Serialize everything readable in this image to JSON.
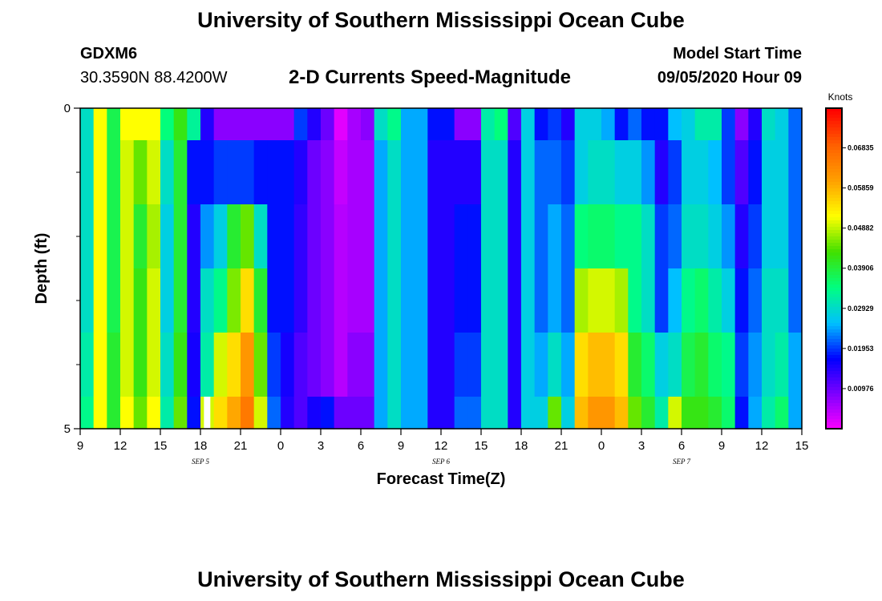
{
  "header": {
    "title": "University of Southern Mississippi Ocean Cube",
    "station_id": "GDXM6",
    "station_coords": "30.3590N 88.4200W",
    "subtitle": "2-D Currents Speed-Magnitude",
    "model_start_label": "Model Start Time",
    "model_start_value": "09/05/2020 Hour 09"
  },
  "footer": {
    "title": "University of Southern Mississippi Ocean Cube"
  },
  "chart_data": {
    "type": "heatmap",
    "xlabel": "Forecast Time(Z)",
    "ylabel": "Depth (ft)",
    "x_tick_labels": [
      "9",
      "12",
      "15",
      "18",
      "21",
      "0",
      "3",
      "6",
      "9",
      "12",
      "15",
      "18",
      "21",
      "0",
      "3",
      "6",
      "9",
      "12",
      "15"
    ],
    "date_labels": [
      {
        "label": "SEP 5",
        "tick_index": 3
      },
      {
        "label": "SEP 6",
        "tick_index": 9
      },
      {
        "label": "SEP 7",
        "tick_index": 15
      }
    ],
    "y_range": [
      0,
      5
    ],
    "y_tick_labels": [
      "0",
      "5"
    ],
    "y_minor_ticks": [
      1,
      2,
      3,
      4
    ],
    "hours": 54,
    "depth_bands": [
      0,
      0.5,
      1.5,
      2.5,
      3.5,
      4.5,
      5
    ],
    "colorbar": {
      "unit": "Knots",
      "min": 0,
      "max": 0.078,
      "tick_labels": [
        "0.00976",
        "0.01953",
        "0.02929",
        "0.03906",
        "0.04882",
        "0.05859",
        "0.06835"
      ],
      "tick_values": [
        0.00976,
        0.01953,
        0.02929,
        0.03906,
        0.04882,
        0.05859,
        0.06835
      ],
      "colors": [
        "#ff00ff",
        "#8000ff",
        "#0000ff",
        "#00c0ff",
        "#00ff80",
        "#40e000",
        "#ffff00",
        "#ffa000",
        "#ff6000",
        "#ff0000"
      ]
    },
    "max_marker": {
      "hour": 9.5,
      "depth": 4.75,
      "color": "#ffffff"
    },
    "values": [
      [
        0.03,
        0.052,
        0.038,
        0.052,
        0.052,
        0.052,
        0.035,
        0.042,
        0.033,
        0.015,
        0.008,
        0.008,
        0.008,
        0.008,
        0.008,
        0.008,
        0.02,
        0.015,
        0.01,
        0.002,
        0.006,
        0.008,
        0.03,
        0.034,
        0.025,
        0.025,
        0.018,
        0.018,
        0.008,
        0.008,
        0.032,
        0.035,
        0.012,
        0.028,
        0.018,
        0.02,
        0.015,
        0.028,
        0.028,
        0.025,
        0.018,
        0.022,
        0.018,
        0.018,
        0.026,
        0.028,
        0.032,
        0.032,
        0.02,
        0.008,
        0.015,
        0.03,
        0.028,
        0.022
      ],
      [
        0.03,
        0.052,
        0.038,
        0.05,
        0.045,
        0.05,
        0.03,
        0.04,
        0.018,
        0.018,
        0.02,
        0.02,
        0.02,
        0.018,
        0.018,
        0.018,
        0.015,
        0.01,
        0.008,
        0.004,
        0.006,
        0.006,
        0.025,
        0.03,
        0.025,
        0.025,
        0.015,
        0.015,
        0.015,
        0.015,
        0.03,
        0.03,
        0.015,
        0.028,
        0.022,
        0.022,
        0.02,
        0.028,
        0.03,
        0.03,
        0.028,
        0.028,
        0.024,
        0.015,
        0.02,
        0.028,
        0.028,
        0.026,
        0.02,
        0.012,
        0.018,
        0.028,
        0.028,
        0.022
      ],
      [
        0.03,
        0.052,
        0.038,
        0.05,
        0.04,
        0.048,
        0.028,
        0.04,
        0.015,
        0.024,
        0.028,
        0.04,
        0.045,
        0.03,
        0.018,
        0.018,
        0.014,
        0.01,
        0.008,
        0.005,
        0.006,
        0.006,
        0.025,
        0.03,
        0.025,
        0.025,
        0.015,
        0.015,
        0.018,
        0.018,
        0.03,
        0.03,
        0.015,
        0.028,
        0.022,
        0.025,
        0.022,
        0.035,
        0.036,
        0.036,
        0.034,
        0.034,
        0.03,
        0.02,
        0.022,
        0.03,
        0.03,
        0.028,
        0.024,
        0.015,
        0.02,
        0.028,
        0.028,
        0.022
      ],
      [
        0.03,
        0.052,
        0.038,
        0.05,
        0.042,
        0.05,
        0.028,
        0.04,
        0.015,
        0.03,
        0.034,
        0.046,
        0.055,
        0.04,
        0.018,
        0.018,
        0.014,
        0.01,
        0.008,
        0.005,
        0.006,
        0.006,
        0.025,
        0.03,
        0.025,
        0.025,
        0.015,
        0.015,
        0.018,
        0.018,
        0.03,
        0.03,
        0.015,
        0.028,
        0.022,
        0.025,
        0.022,
        0.048,
        0.05,
        0.05,
        0.048,
        0.034,
        0.03,
        0.02,
        0.026,
        0.034,
        0.036,
        0.032,
        0.028,
        0.018,
        0.022,
        0.03,
        0.03,
        0.022
      ],
      [
        0.032,
        0.052,
        0.04,
        0.05,
        0.042,
        0.05,
        0.03,
        0.042,
        0.016,
        0.032,
        0.05,
        0.055,
        0.062,
        0.045,
        0.02,
        0.016,
        0.012,
        0.01,
        0.008,
        0.005,
        0.008,
        0.008,
        0.025,
        0.03,
        0.025,
        0.025,
        0.015,
        0.015,
        0.02,
        0.02,
        0.03,
        0.03,
        0.015,
        0.028,
        0.025,
        0.03,
        0.025,
        0.055,
        0.058,
        0.058,
        0.055,
        0.04,
        0.036,
        0.028,
        0.03,
        0.038,
        0.04,
        0.036,
        0.034,
        0.02,
        0.024,
        0.03,
        0.032,
        0.025
      ],
      [
        0.034,
        0.052,
        0.04,
        0.052,
        0.045,
        0.052,
        0.032,
        0.045,
        0.018,
        0.05,
        0.055,
        0.06,
        0.066,
        0.05,
        0.022,
        0.015,
        0.012,
        0.016,
        0.018,
        0.01,
        0.01,
        0.01,
        0.025,
        0.03,
        0.025,
        0.025,
        0.015,
        0.015,
        0.022,
        0.022,
        0.03,
        0.03,
        0.015,
        0.028,
        0.028,
        0.045,
        0.028,
        0.058,
        0.062,
        0.062,
        0.058,
        0.045,
        0.04,
        0.032,
        0.05,
        0.042,
        0.042,
        0.04,
        0.036,
        0.018,
        0.025,
        0.032,
        0.036,
        0.025
      ]
    ]
  }
}
